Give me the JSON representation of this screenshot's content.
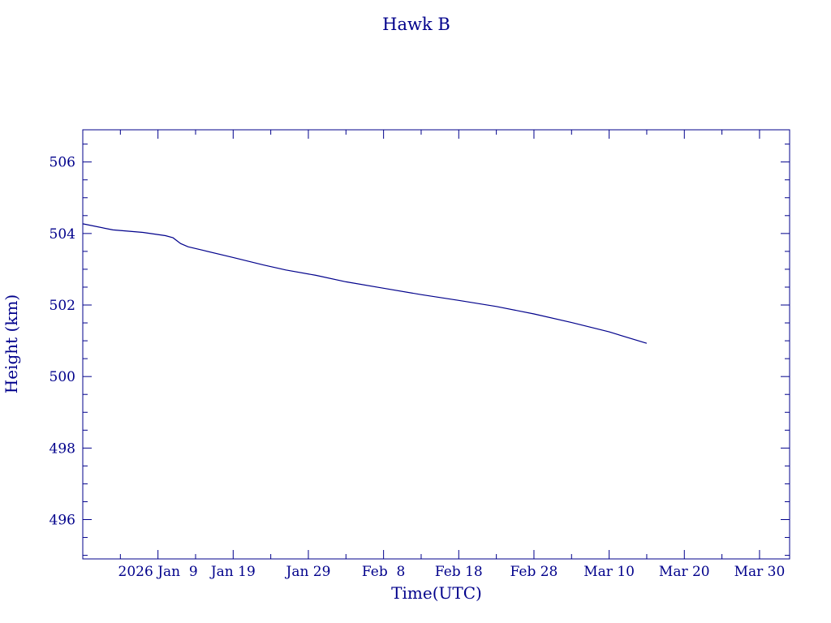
{
  "chart_data": {
    "type": "line",
    "title": "Hawk B",
    "xlabel": "Time(UTC)",
    "ylabel": "Height (km)",
    "color": "#00008b",
    "grid": false,
    "legend": "none",
    "xlim": [
      "2025-12-30",
      "2026-04-03"
    ],
    "ylim": [
      494.9,
      506.9
    ],
    "yticks": [
      496,
      498,
      500,
      502,
      504,
      506
    ],
    "xticks": [
      {
        "date": "2026-01-09",
        "label": "2026 Jan  9"
      },
      {
        "date": "2026-01-19",
        "label": "Jan 19"
      },
      {
        "date": "2026-01-29",
        "label": "Jan 29"
      },
      {
        "date": "2026-02-08",
        "label": "Feb  8"
      },
      {
        "date": "2026-02-18",
        "label": "Feb 18"
      },
      {
        "date": "2026-02-28",
        "label": "Feb 28"
      },
      {
        "date": "2026-03-10",
        "label": "Mar 10"
      },
      {
        "date": "2026-03-20",
        "label": "Mar 20"
      },
      {
        "date": "2026-03-30",
        "label": "Mar 30"
      }
    ],
    "series": [
      {
        "points": [
          [
            "2025-12-30",
            504.27
          ],
          [
            "2026-01-03",
            504.1
          ],
          [
            "2026-01-07",
            504.03
          ],
          [
            "2026-01-10",
            503.94
          ],
          [
            "2026-01-11",
            503.88
          ],
          [
            "2026-01-12",
            503.72
          ],
          [
            "2026-01-13",
            503.63
          ],
          [
            "2026-01-15",
            503.53
          ],
          [
            "2026-01-19",
            503.33
          ],
          [
            "2026-01-23",
            503.12
          ],
          [
            "2026-01-26",
            502.98
          ],
          [
            "2026-01-30",
            502.83
          ],
          [
            "2026-02-03",
            502.65
          ],
          [
            "2026-02-08",
            502.47
          ],
          [
            "2026-02-13",
            502.29
          ],
          [
            "2026-02-18",
            502.13
          ],
          [
            "2026-02-23",
            501.96
          ],
          [
            "2026-02-28",
            501.75
          ],
          [
            "2026-03-05",
            501.51
          ],
          [
            "2026-03-10",
            501.25
          ],
          [
            "2026-03-15",
            500.93
          ]
        ]
      }
    ]
  }
}
